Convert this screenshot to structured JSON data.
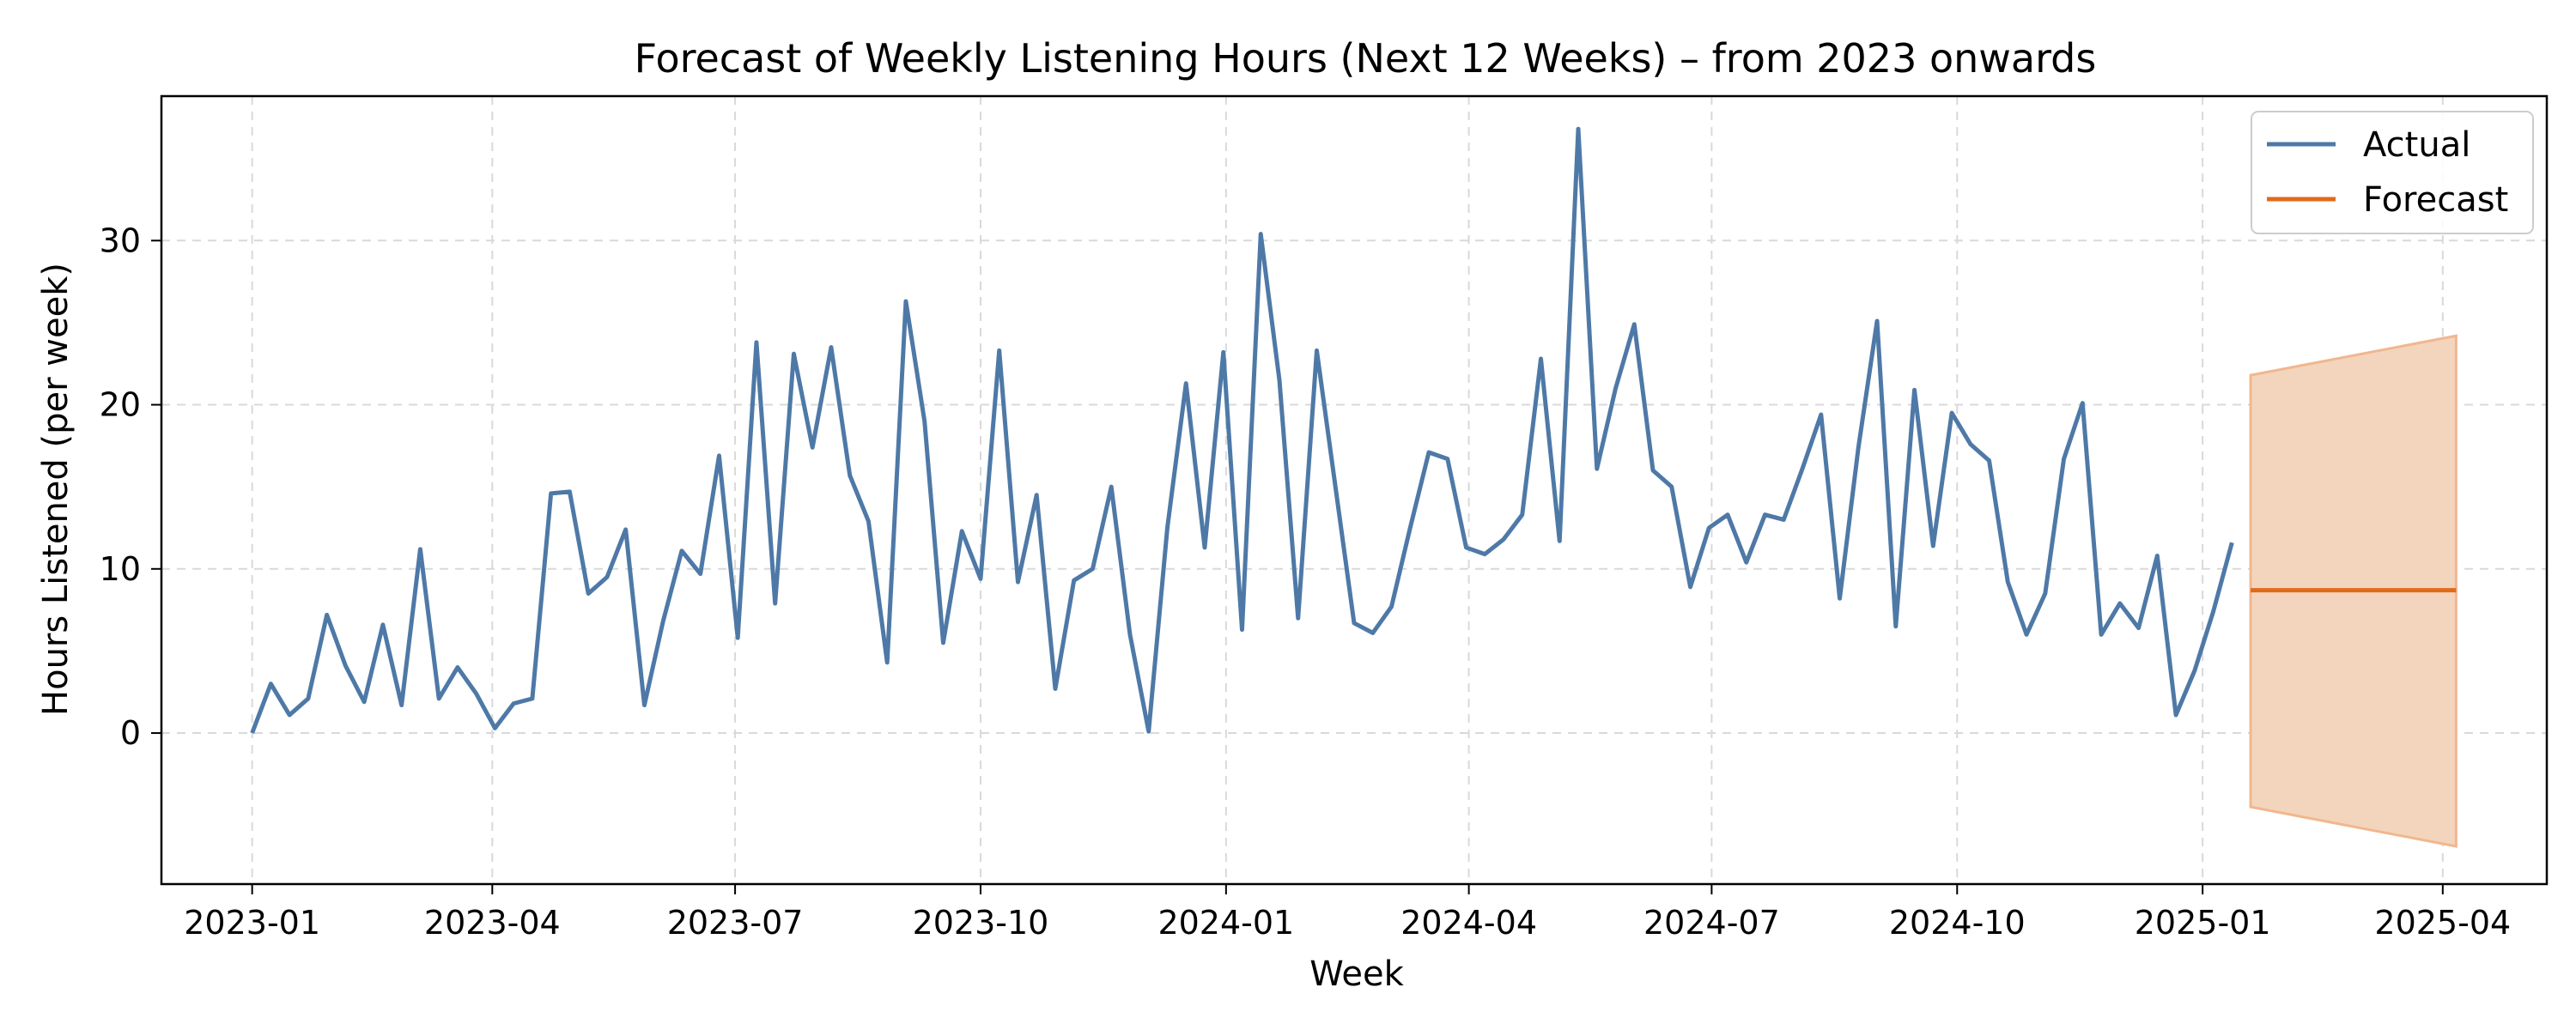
{
  "chart_data": {
    "type": "line",
    "title": "Forecast of Weekly Listening Hours (Next 12 Weeks) – from 2023 onwards",
    "xlabel": "Week",
    "ylabel": "Hours Listened (per week)",
    "x_tick_labels": [
      "2023-01",
      "2023-04",
      "2023-07",
      "2023-10",
      "2024-01",
      "2024-04",
      "2024-07",
      "2024-10",
      "2025-01",
      "2025-04"
    ],
    "x_tick_dates": [
      "2023-01-01",
      "2023-04-01",
      "2023-07-01",
      "2023-10-01",
      "2024-01-01",
      "2024-04-01",
      "2024-07-01",
      "2024-10-01",
      "2025-01-01",
      "2025-04-01"
    ],
    "y_ticks": [
      0,
      10,
      20,
      30
    ],
    "xlim": [
      "2022-11-28",
      "2025-05-10"
    ],
    "ylim": [
      -9.2,
      38.8
    ],
    "grid": true,
    "legend_position": "top-right",
    "legend": [
      "Actual",
      "Forecast"
    ],
    "series": [
      {
        "name": "Actual",
        "color": "#4e79a7",
        "x": [
          "2023-01-01",
          "2023-01-08",
          "2023-01-15",
          "2023-01-22",
          "2023-01-29",
          "2023-02-05",
          "2023-02-12",
          "2023-02-19",
          "2023-02-26",
          "2023-03-05",
          "2023-03-12",
          "2023-03-19",
          "2023-03-26",
          "2023-04-02",
          "2023-04-09",
          "2023-04-16",
          "2023-04-23",
          "2023-04-30",
          "2023-05-07",
          "2023-05-14",
          "2023-05-21",
          "2023-05-28",
          "2023-06-04",
          "2023-06-11",
          "2023-06-18",
          "2023-06-25",
          "2023-07-02",
          "2023-07-09",
          "2023-07-16",
          "2023-07-23",
          "2023-07-30",
          "2023-08-06",
          "2023-08-13",
          "2023-08-20",
          "2023-08-27",
          "2023-09-03",
          "2023-09-10",
          "2023-09-17",
          "2023-09-24",
          "2023-10-01",
          "2023-10-08",
          "2023-10-15",
          "2023-10-22",
          "2023-10-29",
          "2023-11-05",
          "2023-11-12",
          "2023-11-19",
          "2023-11-26",
          "2023-12-03",
          "2023-12-10",
          "2023-12-17",
          "2023-12-24",
          "2023-12-31",
          "2024-01-07",
          "2024-01-14",
          "2024-01-21",
          "2024-01-28",
          "2024-02-04",
          "2024-02-11",
          "2024-02-18",
          "2024-02-25",
          "2024-03-03",
          "2024-03-10",
          "2024-03-17",
          "2024-03-24",
          "2024-03-31",
          "2024-04-07",
          "2024-04-14",
          "2024-04-21",
          "2024-04-28",
          "2024-05-05",
          "2024-05-12",
          "2024-05-19",
          "2024-05-26",
          "2024-06-02",
          "2024-06-09",
          "2024-06-16",
          "2024-06-23",
          "2024-06-30",
          "2024-07-07",
          "2024-07-14",
          "2024-07-21",
          "2024-07-28",
          "2024-08-04",
          "2024-08-11",
          "2024-08-18",
          "2024-08-25",
          "2024-09-01",
          "2024-09-08",
          "2024-09-15",
          "2024-09-22",
          "2024-09-29",
          "2024-10-06",
          "2024-10-13",
          "2024-10-20",
          "2024-10-27",
          "2024-11-03",
          "2024-11-10",
          "2024-11-17",
          "2024-11-24",
          "2024-12-01",
          "2024-12-08",
          "2024-12-15",
          "2024-12-22",
          "2024-12-29",
          "2025-01-05",
          "2025-01-12"
        ],
        "values": [
          0.0,
          3.0,
          1.1,
          2.1,
          7.2,
          4.1,
          1.9,
          6.6,
          1.7,
          11.2,
          2.1,
          4.0,
          2.4,
          0.3,
          1.8,
          2.1,
          14.6,
          14.7,
          8.5,
          9.5,
          12.4,
          1.7,
          6.8,
          11.1,
          9.7,
          16.9,
          5.8,
          23.8,
          7.9,
          23.1,
          17.4,
          23.5,
          15.7,
          12.9,
          4.3,
          26.3,
          19.0,
          5.5,
          12.3,
          9.4,
          23.3,
          9.2,
          14.5,
          2.7,
          9.3,
          10.0,
          15.0,
          6.0,
          0.1,
          12.5,
          21.3,
          11.3,
          23.2,
          6.3,
          30.4,
          21.5,
          7.0,
          23.3,
          15.0,
          6.7,
          6.1,
          7.7,
          12.5,
          17.1,
          16.7,
          11.3,
          10.9,
          11.8,
          13.3,
          22.8,
          11.7,
          36.8,
          16.1,
          21.0,
          24.9,
          16.0,
          15.0,
          8.9,
          12.5,
          13.3,
          10.4,
          13.3,
          13.0,
          16.1,
          19.4,
          8.2,
          17.4,
          25.1,
          6.5,
          20.9,
          11.4,
          19.5,
          17.6,
          16.6,
          9.2,
          6.0,
          8.5,
          16.7,
          20.1,
          6.0,
          7.9,
          6.4,
          10.8,
          1.1,
          3.8,
          7.4,
          11.6
        ]
      },
      {
        "name": "Forecast",
        "color": "#e06a1b",
        "x": [
          "2025-01-19",
          "2025-04-06"
        ],
        "values": [
          8.7,
          8.7
        ],
        "lower": [
          -4.5,
          -6.9
        ],
        "upper": [
          21.8,
          24.2
        ],
        "band_fill": "#f3d5bd",
        "band_edge": "#f0b78e"
      }
    ]
  }
}
